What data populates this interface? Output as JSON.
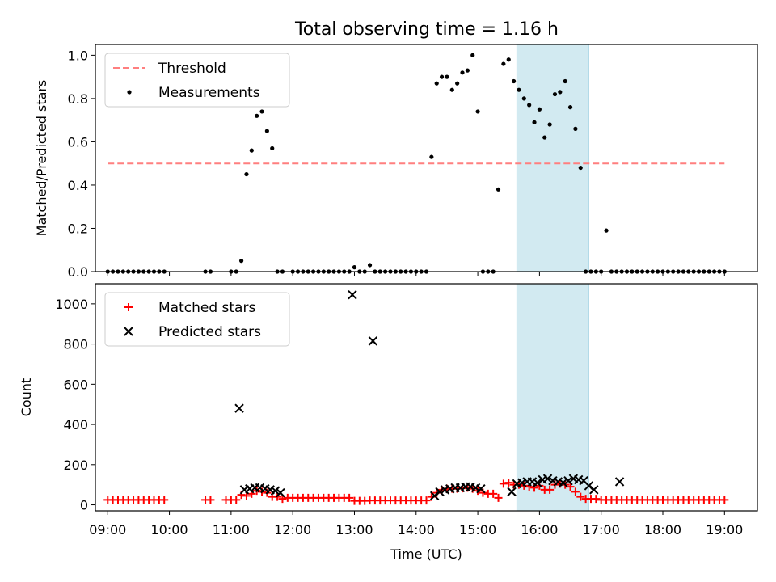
{
  "title": "Total observing time = 1.16 h",
  "colors": {
    "threshold": "#ff7f7f",
    "measurement": "#000000",
    "matched": "#ff0000",
    "predicted": "#000000",
    "highlight": "#add8e6"
  },
  "highlight_window": [
    "15:38",
    "16:48"
  ],
  "chart_data": [
    {
      "type": "scatter",
      "panel": "top",
      "title": "Total observing time = 1.16 h",
      "xlabel": "",
      "ylabel": "Matched/Predicted stars",
      "xlim": [
        "08:48",
        "19:32"
      ],
      "ylim": [
        0,
        1.05
      ],
      "yticks": [
        0.0,
        0.2,
        0.4,
        0.6,
        0.8,
        1.0
      ],
      "ytick_labels": [
        "0.0",
        "0.2",
        "0.4",
        "0.6",
        "0.8",
        "1.0"
      ],
      "xticks": [
        "09:00",
        "10:00",
        "11:00",
        "12:00",
        "13:00",
        "14:00",
        "15:00",
        "16:00",
        "17:00",
        "18:00",
        "19:00"
      ],
      "legend": {
        "placement": "upper-left",
        "entries": [
          "Threshold",
          "Measurements"
        ]
      },
      "threshold": {
        "name": "Threshold",
        "y": 0.5,
        "x": [
          "09:00",
          "19:00"
        ],
        "style": "dashed"
      },
      "series": [
        {
          "name": "Measurements",
          "x": [
            "09:00",
            "09:05",
            "09:10",
            "09:15",
            "09:20",
            "09:25",
            "09:30",
            "09:35",
            "09:40",
            "09:45",
            "09:50",
            "09:55",
            "10:35",
            "10:40",
            "11:10",
            "11:15",
            "11:20",
            "11:25",
            "11:30",
            "11:35",
            "11:40",
            "11:45",
            "11:50",
            "12:00",
            "12:05",
            "12:10",
            "12:15",
            "12:20",
            "12:25",
            "12:30",
            "12:35",
            "12:40",
            "12:45",
            "12:50",
            "12:55",
            "13:00",
            "13:05",
            "13:10",
            "13:15",
            "13:20",
            "13:25",
            "13:30",
            "13:35",
            "13:40",
            "13:45",
            "13:50",
            "13:55",
            "14:00",
            "14:05",
            "14:10",
            "14:15",
            "14:20",
            "14:25",
            "14:30",
            "14:35",
            "14:40",
            "14:45",
            "14:50",
            "14:55",
            "15:00",
            "15:05",
            "15:10",
            "15:15",
            "15:20",
            "15:25",
            "15:30",
            "15:35",
            "15:40",
            "15:45",
            "15:50",
            "15:55",
            "16:00",
            "16:05",
            "16:10",
            "16:15",
            "16:20",
            "16:25",
            "16:30",
            "16:35",
            "16:40",
            "16:45",
            "16:50",
            "16:55",
            "17:00",
            "17:05",
            "17:10",
            "17:15",
            "17:20",
            "17:25",
            "17:30",
            "17:35",
            "17:40",
            "17:45",
            "17:50",
            "17:55",
            "18:00",
            "18:05",
            "18:10",
            "18:15",
            "18:20",
            "18:25",
            "18:30",
            "18:35",
            "18:40",
            "18:45",
            "18:50",
            "18:55",
            "19:00",
            "11:00",
            "11:05"
          ],
          "y": [
            0,
            0,
            0,
            0,
            0,
            0,
            0,
            0,
            0,
            0,
            0,
            0,
            0,
            0,
            0.05,
            0.45,
            0.56,
            0.72,
            0.74,
            0.65,
            0.57,
            0,
            0,
            0,
            0,
            0,
            0,
            0,
            0,
            0,
            0,
            0,
            0,
            0,
            0,
            0.02,
            0,
            0,
            0.03,
            0,
            0,
            0,
            0,
            0,
            0,
            0,
            0,
            0,
            0,
            0,
            0.53,
            0.87,
            0.9,
            0.9,
            0.84,
            0.87,
            0.92,
            0.93,
            1.0,
            0.74,
            0,
            0,
            0,
            0.38,
            0.96,
            0.98,
            0.88,
            0.84,
            0.8,
            0.77,
            0.69,
            0.75,
            0.62,
            0.68,
            0.82,
            0.83,
            0.88,
            0.76,
            0.66,
            0.48,
            0,
            0,
            0,
            0,
            0.19,
            0,
            0,
            0,
            0,
            0,
            0,
            0,
            0,
            0,
            0,
            0,
            0,
            0,
            0,
            0,
            0,
            0,
            0,
            0,
            0,
            0,
            0,
            0,
            0,
            0
          ]
        }
      ]
    },
    {
      "type": "scatter",
      "panel": "bottom",
      "xlabel": "Time (UTC)",
      "ylabel": "Count",
      "xlim": [
        "08:48",
        "19:32"
      ],
      "ylim": [
        -30,
        1100
      ],
      "yticks": [
        0,
        200,
        400,
        600,
        800,
        1000
      ],
      "ytick_labels": [
        "0",
        "200",
        "400",
        "600",
        "800",
        "1000"
      ],
      "xticks": [
        "09:00",
        "10:00",
        "11:00",
        "12:00",
        "13:00",
        "14:00",
        "15:00",
        "16:00",
        "17:00",
        "18:00",
        "19:00"
      ],
      "xtick_labels": [
        "09:00",
        "10:00",
        "11:00",
        "12:00",
        "13:00",
        "14:00",
        "15:00",
        "16:00",
        "17:00",
        "18:00",
        "19:00"
      ],
      "legend": {
        "placement": "upper-left",
        "entries": [
          "Matched stars",
          "Predicted stars"
        ]
      },
      "series": [
        {
          "name": "Matched stars",
          "marker": "+",
          "x": [
            "09:00",
            "09:05",
            "09:10",
            "09:15",
            "09:20",
            "09:25",
            "09:30",
            "09:35",
            "09:40",
            "09:45",
            "09:50",
            "09:55",
            "10:35",
            "10:40",
            "10:55",
            "11:00",
            "11:05",
            "11:10",
            "11:15",
            "11:20",
            "11:25",
            "11:30",
            "11:35",
            "11:40",
            "11:45",
            "11:50",
            "11:55",
            "12:00",
            "12:05",
            "12:10",
            "12:15",
            "12:20",
            "12:25",
            "12:30",
            "12:35",
            "12:40",
            "12:45",
            "12:50",
            "12:55",
            "13:00",
            "13:05",
            "13:10",
            "13:15",
            "13:20",
            "13:25",
            "13:30",
            "13:35",
            "13:40",
            "13:45",
            "13:50",
            "13:55",
            "14:00",
            "14:05",
            "14:10",
            "14:15",
            "14:20",
            "14:25",
            "14:30",
            "14:35",
            "14:40",
            "14:45",
            "14:50",
            "14:55",
            "15:00",
            "15:05",
            "15:10",
            "15:15",
            "15:20",
            "15:25",
            "15:30",
            "15:35",
            "15:40",
            "15:45",
            "15:50",
            "15:55",
            "16:00",
            "16:05",
            "16:10",
            "16:15",
            "16:20",
            "16:25",
            "16:30",
            "16:35",
            "16:40",
            "16:45",
            "16:50",
            "16:55",
            "17:00",
            "17:05",
            "17:10",
            "17:15",
            "17:20",
            "17:25",
            "17:30",
            "17:35",
            "17:40",
            "17:45",
            "17:50",
            "17:55",
            "18:00",
            "18:05",
            "18:10",
            "18:15",
            "18:20",
            "18:25",
            "18:30",
            "18:35",
            "18:40",
            "18:45",
            "18:50",
            "18:55",
            "19:00"
          ],
          "y": [
            25,
            25,
            25,
            25,
            25,
            25,
            25,
            25,
            25,
            25,
            25,
            25,
            25,
            25,
            25,
            25,
            25,
            50,
            45,
            55,
            70,
            65,
            60,
            40,
            40,
            30,
            35,
            35,
            35,
            35,
            35,
            35,
            35,
            35,
            35,
            35,
            35,
            35,
            35,
            20,
            20,
            20,
            22,
            22,
            22,
            22,
            22,
            22,
            22,
            22,
            22,
            22,
            22,
            22,
            40,
            60,
            75,
            80,
            80,
            80,
            82,
            85,
            80,
            70,
            60,
            55,
            55,
            35,
            105,
            110,
            100,
            100,
            95,
            90,
            85,
            95,
            75,
            75,
            100,
            105,
            100,
            90,
            65,
            40,
            30,
            30,
            30,
            25,
            25,
            25,
            25,
            25,
            25,
            25,
            25,
            25,
            25,
            25,
            25,
            25,
            25,
            25,
            25,
            25,
            25,
            25,
            25,
            25,
            25,
            25,
            25,
            25
          ]
        },
        {
          "name": "Predicted stars",
          "marker": "x",
          "x": [
            "11:08",
            "11:13",
            "11:18",
            "11:23",
            "11:28",
            "11:33",
            "11:38",
            "11:43",
            "11:48",
            "12:58",
            "13:18",
            "14:18",
            "14:23",
            "14:28",
            "14:33",
            "14:38",
            "14:43",
            "14:48",
            "14:53",
            "14:58",
            "15:03",
            "15:33",
            "15:38",
            "15:43",
            "15:48",
            "15:53",
            "15:58",
            "16:03",
            "16:08",
            "16:13",
            "16:18",
            "16:23",
            "16:28",
            "16:33",
            "16:38",
            "16:43",
            "16:48",
            "16:53",
            "17:18"
          ],
          "y": [
            480,
            75,
            80,
            85,
            85,
            80,
            75,
            70,
            60,
            1045,
            815,
            45,
            65,
            75,
            80,
            85,
            85,
            90,
            90,
            85,
            80,
            65,
            105,
            110,
            115,
            115,
            110,
            125,
            130,
            120,
            115,
            110,
            120,
            130,
            125,
            120,
            95,
            75,
            115
          ]
        }
      ]
    }
  ]
}
